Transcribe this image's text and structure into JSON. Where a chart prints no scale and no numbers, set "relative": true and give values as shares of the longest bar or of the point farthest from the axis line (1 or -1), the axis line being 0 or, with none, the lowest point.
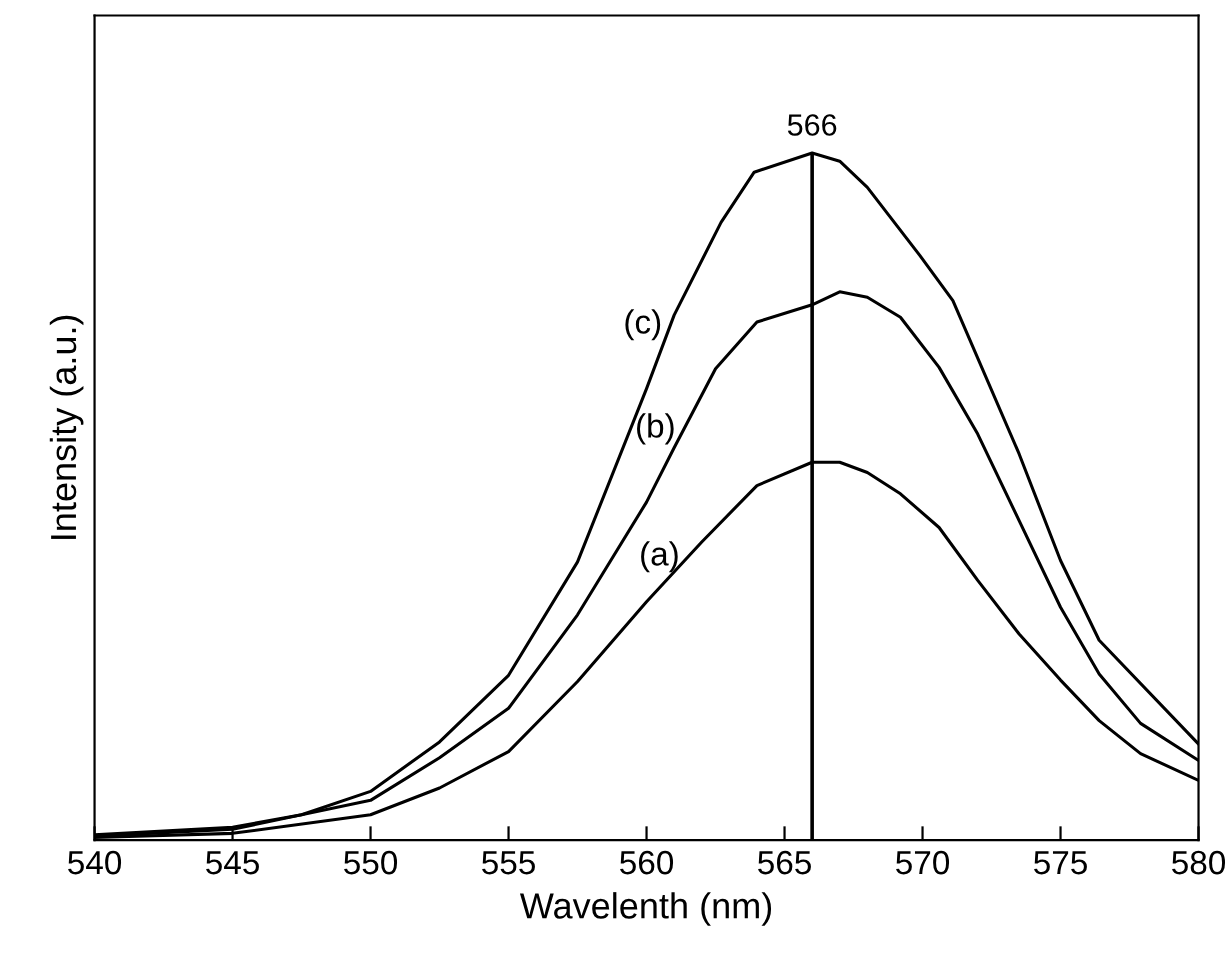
{
  "chart_data": {
    "type": "line",
    "xlabel": "Wavelenth (nm)",
    "ylabel": "Intensity (a.u.)",
    "relative": true,
    "xlim": [
      540,
      580
    ],
    "xticks": [
      540,
      545,
      550,
      555,
      560,
      565,
      570,
      575,
      580
    ],
    "grid": false,
    "legend": false,
    "marker": "none",
    "line_style": "solid",
    "ref_lines": [
      {
        "axis": "x",
        "value": 566,
        "label": "566",
        "color": "#000000"
      }
    ],
    "series": [
      {
        "name": "(a)",
        "color": "#000000",
        "x": [
          540,
          545,
          550,
          552.5,
          555,
          557.5,
          560,
          562,
          564,
          566,
          567,
          568,
          569.2,
          570.6,
          572,
          573.5,
          575,
          576.4,
          577.9,
          580
        ],
        "values": [
          0.004,
          0.01,
          0.037,
          0.076,
          0.129,
          0.231,
          0.347,
          0.434,
          0.516,
          0.55,
          0.55,
          0.535,
          0.504,
          0.455,
          0.378,
          0.3,
          0.233,
          0.174,
          0.126,
          0.087
        ]
      },
      {
        "name": "(b)",
        "color": "#000000",
        "x": [
          540,
          545,
          550,
          552.5,
          555,
          557.5,
          560,
          561,
          562.5,
          564,
          566,
          567,
          568,
          569.2,
          570.6,
          572,
          573.5,
          575,
          576.4,
          577.9,
          580
        ],
        "values": [
          0.006,
          0.016,
          0.058,
          0.12,
          0.192,
          0.328,
          0.492,
          0.571,
          0.686,
          0.754,
          0.779,
          0.798,
          0.79,
          0.761,
          0.688,
          0.591,
          0.465,
          0.339,
          0.242,
          0.17,
          0.116
        ]
      },
      {
        "name": "(c)",
        "color": "#000000",
        "x": [
          540,
          545,
          547.5,
          550,
          552.5,
          555,
          557.5,
          560,
          561,
          562.7,
          563.9,
          566,
          567,
          568,
          569.9,
          571.1,
          573.5,
          575,
          576.4,
          580
        ],
        "values": [
          0.008,
          0.019,
          0.037,
          0.071,
          0.143,
          0.24,
          0.405,
          0.657,
          0.764,
          0.899,
          0.972,
          1.0,
          0.988,
          0.95,
          0.851,
          0.785,
          0.562,
          0.407,
          0.291,
          0.14
        ]
      }
    ]
  }
}
